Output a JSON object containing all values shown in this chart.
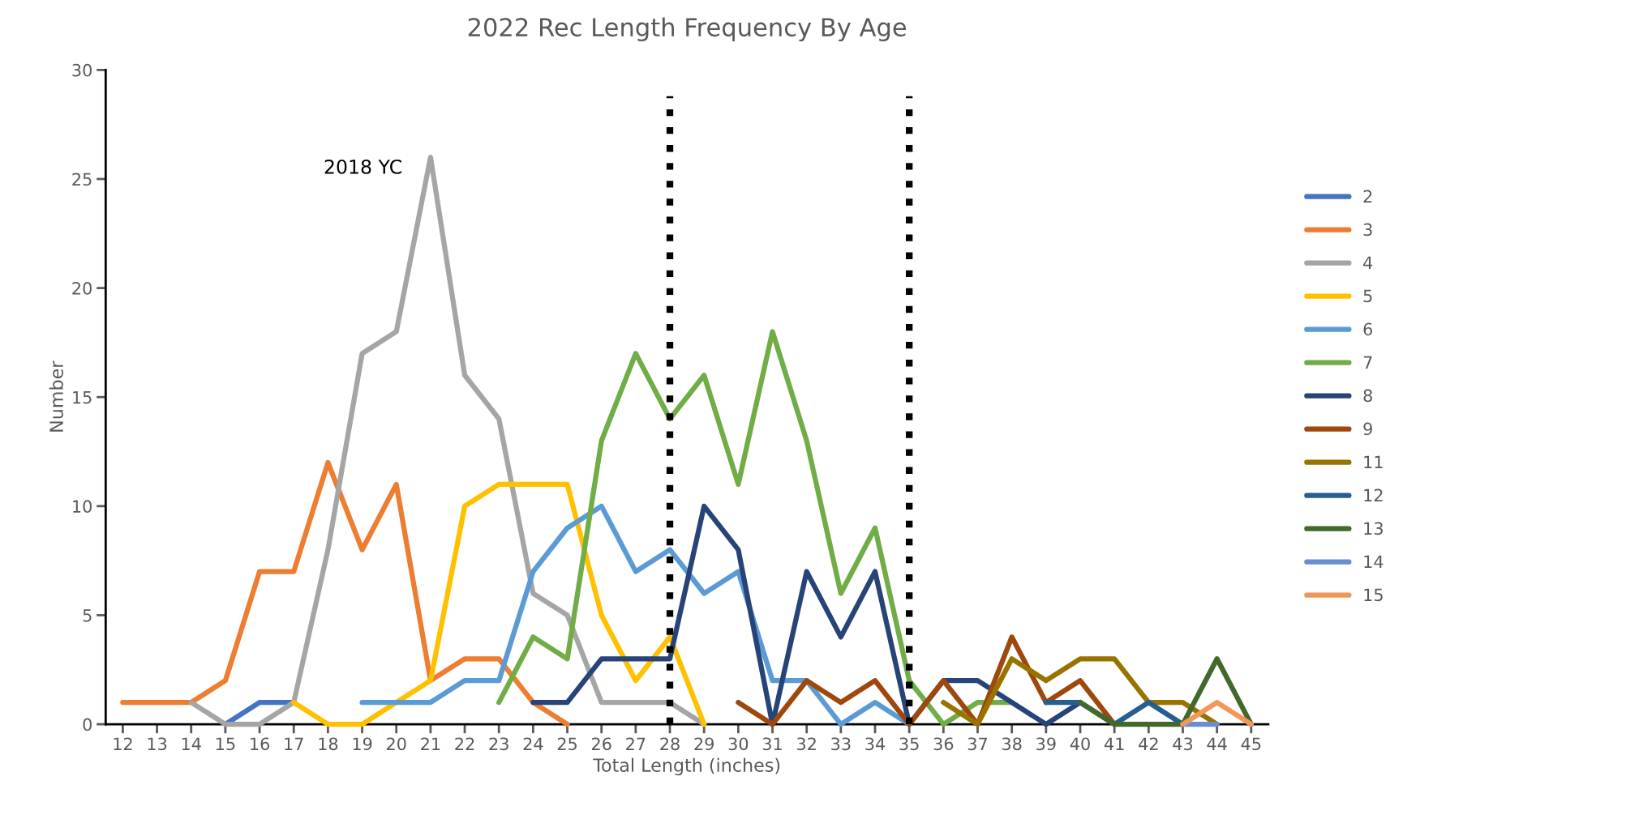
{
  "chart_data": {
    "type": "line",
    "title": "2022 Rec Length Frequency By Age",
    "xlabel": "Total Length (inches)",
    "ylabel": "Number",
    "categories": [
      "12",
      "13",
      "14",
      "15",
      "16",
      "17",
      "18",
      "19",
      "20",
      "21",
      "22",
      "23",
      "24",
      "25",
      "26",
      "27",
      "28",
      "29",
      "30",
      "31",
      "32",
      "33",
      "34",
      "35",
      "36",
      "37",
      "38",
      "39",
      "40",
      "41",
      "42",
      "43",
      "44",
      "45"
    ],
    "ylim": [
      0,
      30
    ],
    "yticks": [
      0,
      5,
      10,
      15,
      20,
      25,
      30
    ],
    "grid": false,
    "legend": "right",
    "line_style": "solid",
    "marker": "none",
    "ref_lines": [
      {
        "axis": "x",
        "value": "28",
        "color": "#000000",
        "line_style": "dotted"
      },
      {
        "axis": "x",
        "value": "35",
        "color": "#000000",
        "line_style": "dotted"
      }
    ],
    "annotations": [
      {
        "text": "2018 YC",
        "x": "21",
        "y": 26
      }
    ],
    "series": [
      {
        "name": "2",
        "color": "#4472c4",
        "values": [
          null,
          null,
          null,
          0,
          1,
          1,
          null,
          null,
          null,
          null,
          null,
          null,
          null,
          null,
          null,
          null,
          null,
          null,
          null,
          null,
          null,
          null,
          null,
          null,
          null,
          null,
          null,
          null,
          null,
          null,
          null,
          null,
          null,
          null
        ]
      },
      {
        "name": "3",
        "color": "#ed7d31",
        "values": [
          1,
          1,
          1,
          2,
          7,
          7,
          12,
          8,
          11,
          2,
          3,
          3,
          1,
          0,
          null,
          null,
          null,
          null,
          null,
          null,
          null,
          null,
          null,
          null,
          null,
          null,
          null,
          null,
          null,
          null,
          null,
          null,
          null,
          null
        ]
      },
      {
        "name": "4",
        "color": "#a5a5a5",
        "values": [
          null,
          null,
          1,
          0,
          0,
          1,
          8,
          17,
          18,
          26,
          16,
          14,
          6,
          5,
          1,
          1,
          1,
          0,
          null,
          null,
          null,
          null,
          null,
          null,
          null,
          null,
          null,
          null,
          null,
          null,
          null,
          null,
          null,
          null
        ]
      },
      {
        "name": "5",
        "color": "#ffc000",
        "values": [
          null,
          null,
          null,
          null,
          null,
          1,
          0,
          0,
          1,
          2,
          10,
          11,
          11,
          11,
          5,
          2,
          4,
          0,
          null,
          null,
          null,
          null,
          null,
          null,
          null,
          null,
          null,
          null,
          null,
          null,
          null,
          null,
          null,
          null
        ]
      },
      {
        "name": "6",
        "color": "#5b9bd5",
        "values": [
          null,
          null,
          null,
          null,
          null,
          null,
          null,
          1,
          1,
          1,
          2,
          2,
          7,
          9,
          10,
          7,
          8,
          6,
          7,
          2,
          2,
          0,
          1,
          0,
          null,
          null,
          null,
          null,
          null,
          null,
          null,
          null,
          null,
          null
        ]
      },
      {
        "name": "7",
        "color": "#70ad47",
        "values": [
          null,
          null,
          null,
          null,
          null,
          null,
          null,
          null,
          null,
          null,
          null,
          1,
          4,
          3,
          13,
          17,
          14,
          16,
          11,
          18,
          13,
          6,
          9,
          2,
          0,
          1,
          1,
          null,
          null,
          null,
          null,
          null,
          null,
          null
        ]
      },
      {
        "name": "8",
        "color": "#264478",
        "values": [
          null,
          null,
          null,
          null,
          null,
          null,
          null,
          null,
          null,
          null,
          null,
          null,
          1,
          1,
          3,
          3,
          3,
          10,
          8,
          0,
          7,
          4,
          7,
          0,
          2,
          2,
          1,
          0,
          1,
          null,
          null,
          null,
          null,
          null
        ]
      },
      {
        "name": "9",
        "color": "#9e480e",
        "values": [
          null,
          null,
          null,
          null,
          null,
          null,
          null,
          null,
          null,
          null,
          null,
          null,
          null,
          null,
          null,
          null,
          null,
          null,
          1,
          0,
          2,
          1,
          2,
          0,
          2,
          0,
          4,
          1,
          2,
          0,
          null,
          null,
          null,
          null
        ]
      },
      {
        "name": "11",
        "color": "#997300",
        "values": [
          null,
          null,
          null,
          null,
          null,
          null,
          null,
          null,
          null,
          null,
          null,
          null,
          null,
          null,
          null,
          null,
          null,
          null,
          null,
          null,
          null,
          null,
          null,
          null,
          1,
          0,
          3,
          2,
          3,
          3,
          1,
          1,
          0,
          null
        ]
      },
      {
        "name": "12",
        "color": "#255e91",
        "values": [
          null,
          null,
          null,
          null,
          null,
          null,
          null,
          null,
          null,
          null,
          null,
          null,
          null,
          null,
          null,
          null,
          null,
          null,
          null,
          null,
          null,
          null,
          null,
          null,
          null,
          null,
          null,
          1,
          1,
          0,
          1,
          0,
          null,
          null
        ]
      },
      {
        "name": "13",
        "color": "#43682b",
        "values": [
          null,
          null,
          null,
          null,
          null,
          null,
          null,
          null,
          null,
          null,
          null,
          null,
          null,
          null,
          null,
          null,
          null,
          null,
          null,
          null,
          null,
          null,
          null,
          null,
          null,
          null,
          null,
          null,
          1,
          0,
          0,
          0,
          3,
          0
        ]
      },
      {
        "name": "14",
        "color": "#698ed0",
        "values": [
          null,
          null,
          null,
          null,
          null,
          null,
          null,
          null,
          null,
          null,
          null,
          null,
          null,
          null,
          null,
          null,
          null,
          null,
          null,
          null,
          null,
          null,
          null,
          null,
          null,
          null,
          null,
          null,
          null,
          null,
          null,
          0,
          0,
          null
        ]
      },
      {
        "name": "15",
        "color": "#f1975a",
        "values": [
          null,
          null,
          null,
          null,
          null,
          null,
          null,
          null,
          null,
          null,
          null,
          null,
          null,
          null,
          null,
          null,
          null,
          null,
          null,
          null,
          null,
          null,
          null,
          null,
          null,
          null,
          null,
          null,
          null,
          null,
          null,
          0,
          1,
          0
        ]
      }
    ]
  }
}
